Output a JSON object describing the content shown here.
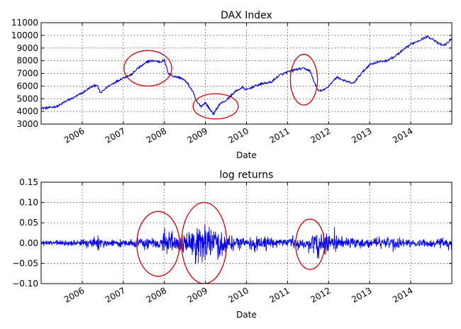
{
  "chart_data": [
    {
      "type": "line",
      "title": "DAX Index",
      "xlabel": "Date",
      "ylabel": "",
      "xlim": [
        2005.0,
        2015.0
      ],
      "ylim": [
        3000,
        11000
      ],
      "x_ticks": [
        2006,
        2007,
        2008,
        2009,
        2010,
        2011,
        2012,
        2013,
        2014
      ],
      "x_tick_labels": [
        "2006",
        "2007",
        "2008",
        "2009",
        "2010",
        "2011",
        "2012",
        "2013",
        "2014"
      ],
      "y_ticks": [
        3000,
        4000,
        5000,
        6000,
        7000,
        8000,
        9000,
        10000,
        11000
      ],
      "y_tick_labels": [
        "3000",
        "4000",
        "5000",
        "6000",
        "7000",
        "8000",
        "9000",
        "10000",
        "11000"
      ],
      "grid": true,
      "line_color": "#0000cc",
      "annotation_color": "#cc0000",
      "series": [
        {
          "x": [
            2005.0,
            2005.2,
            2005.4,
            2005.6,
            2005.8,
            2006.0,
            2006.2,
            2006.35,
            2006.45,
            2006.6,
            2006.8,
            2007.0,
            2007.2,
            2007.35,
            2007.5,
            2007.6,
            2007.75,
            2007.9,
            2008.0,
            2008.1,
            2008.2,
            2008.4,
            2008.55,
            2008.7,
            2008.8,
            2008.9,
            2009.0,
            2009.1,
            2009.2,
            2009.35,
            2009.5,
            2009.7,
            2009.9,
            2010.0,
            2010.2,
            2010.4,
            2010.6,
            2010.8,
            2011.0,
            2011.2,
            2011.4,
            2011.55,
            2011.65,
            2011.75,
            2011.9,
            2012.0,
            2012.2,
            2012.4,
            2012.6,
            2012.8,
            2013.0,
            2013.2,
            2013.4,
            2013.6,
            2013.8,
            2014.0,
            2014.2,
            2014.4,
            2014.55,
            2014.65,
            2014.8,
            2014.9,
            2015.0
          ],
          "y": [
            4250,
            4300,
            4400,
            4800,
            5100,
            5450,
            5900,
            6100,
            5450,
            5900,
            6300,
            6650,
            6900,
            7400,
            7700,
            7950,
            8000,
            7900,
            8050,
            7000,
            6800,
            6650,
            6300,
            5500,
            4700,
            4400,
            4700,
            4200,
            3800,
            4600,
            4850,
            5500,
            5900,
            5700,
            6000,
            6200,
            6300,
            6850,
            7100,
            7300,
            7400,
            7200,
            6300,
            5600,
            5700,
            6000,
            6700,
            6400,
            6200,
            7000,
            7700,
            7900,
            8000,
            8300,
            8800,
            9300,
            9600,
            9900,
            9700,
            9400,
            9200,
            9400,
            9800
          ]
        }
      ],
      "annotations": [
        {
          "type": "ellipse",
          "cx": 2007.6,
          "cy": 7400,
          "rx": 0.58,
          "ry": 1400
        },
        {
          "type": "ellipse",
          "cx": 2009.25,
          "cy": 4400,
          "rx": 0.55,
          "ry": 1000
        },
        {
          "type": "ellipse",
          "cx": 2011.4,
          "cy": 6500,
          "rx": 0.33,
          "ry": 2000
        }
      ]
    },
    {
      "type": "line",
      "title": "log returns",
      "xlabel": "Date",
      "ylabel": "",
      "xlim": [
        2005.0,
        2015.0
      ],
      "ylim": [
        -0.1,
        0.15
      ],
      "x_ticks": [
        2006,
        2007,
        2008,
        2009,
        2010,
        2011,
        2012,
        2013,
        2014
      ],
      "x_tick_labels": [
        "2006",
        "2007",
        "2008",
        "2009",
        "2010",
        "2011",
        "2012",
        "2013",
        "2014"
      ],
      "y_ticks": [
        -0.1,
        -0.05,
        0.0,
        0.05,
        0.1,
        0.15
      ],
      "y_tick_labels": [
        "−0.10",
        "−0.05",
        "0.00",
        "0.05",
        "0.10",
        "0.15"
      ],
      "grid": true,
      "line_color": "#0000ee",
      "annotation_color": "#cc0000",
      "volatility_profile": {
        "x": [
          2005.0,
          2006.0,
          2006.4,
          2006.6,
          2007.0,
          2007.5,
          2007.9,
          2008.0,
          2008.3,
          2008.6,
          2008.8,
          2009.0,
          2009.3,
          2009.6,
          2010.0,
          2010.4,
          2010.6,
          2011.0,
          2011.5,
          2011.75,
          2012.0,
          2012.4,
          2012.8,
          2013.3,
          2013.6,
          2014.0,
          2014.5,
          2015.0
        ],
        "amplitude": [
          0.01,
          0.012,
          0.025,
          0.013,
          0.012,
          0.02,
          0.025,
          0.045,
          0.025,
          0.04,
          0.075,
          0.08,
          0.05,
          0.03,
          0.018,
          0.03,
          0.02,
          0.015,
          0.025,
          0.05,
          0.035,
          0.025,
          0.015,
          0.02,
          0.025,
          0.012,
          0.018,
          0.022
        ]
      },
      "annotations": [
        {
          "type": "ellipse",
          "cx": 2007.85,
          "cy": -0.002,
          "rx": 0.52,
          "ry": 0.08
        },
        {
          "type": "ellipse",
          "cx": 2008.97,
          "cy": 0.0,
          "rx": 0.55,
          "ry": 0.1
        },
        {
          "type": "ellipse",
          "cx": 2011.55,
          "cy": -0.003,
          "rx": 0.35,
          "ry": 0.062
        }
      ]
    }
  ]
}
